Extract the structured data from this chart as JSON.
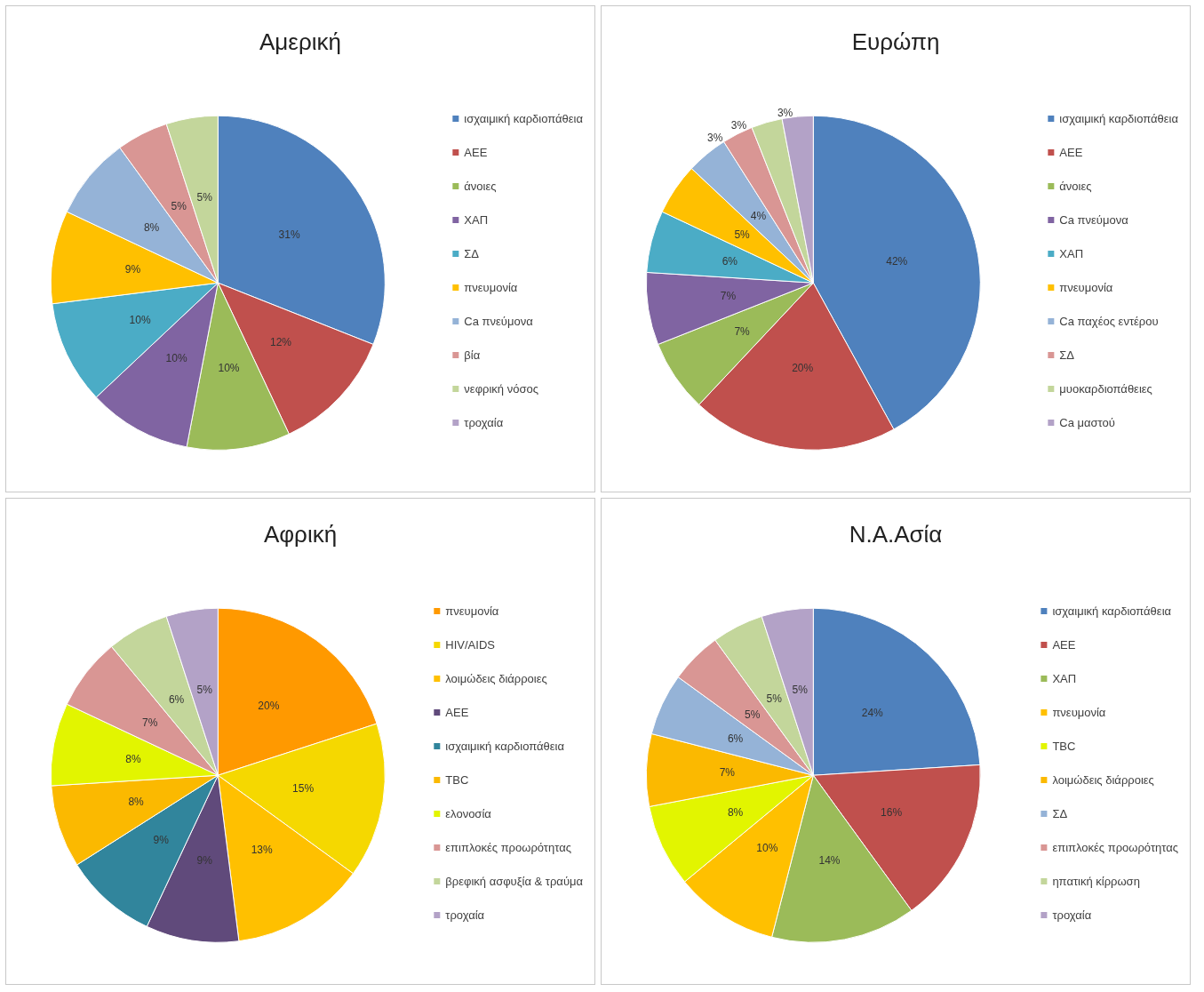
{
  "chart_data": [
    {
      "type": "pie",
      "title": "Αμερική",
      "legend": "right",
      "categories": [
        "ισχαιμική καρδιοπάθεια",
        "ΑΕΕ",
        "άνοιες",
        "ΧΑΠ",
        "ΣΔ",
        "πνευμονία",
        "Ca πνεύμονα",
        "βία",
        "νεφρική νόσος",
        "τροχαία"
      ],
      "values": [
        31,
        12,
        10,
        10,
        10,
        9,
        8,
        5,
        5,
        null
      ],
      "value_labels": [
        "31%",
        "12%",
        "10%",
        "10%",
        "10%",
        "9%",
        "8%",
        "5%",
        "5%",
        null
      ],
      "colors": [
        "#4f81bd",
        "#c0504d",
        "#9bbb59",
        "#8064a2",
        "#4bacc6",
        "#ffc000",
        "#95b3d7",
        "#d99694",
        "#c3d69b",
        "#b3a2c7"
      ]
    },
    {
      "type": "pie",
      "title": "Ευρώπη",
      "legend": "right",
      "categories": [
        "ισχαιμική καρδιοπάθεια",
        "ΑΕΕ",
        "άνοιες",
        "Ca πνεύμονα",
        "ΧΑΠ",
        "πνευμονία",
        "Ca παχέος εντέρου",
        "ΣΔ",
        "μυοκαρδιοπάθειες",
        "Ca μαστού"
      ],
      "values": [
        42,
        20,
        7,
        7,
        6,
        5,
        4,
        3,
        3,
        3
      ],
      "value_labels": [
        "42%",
        "20%",
        "7%",
        "7%",
        "6%",
        "5%",
        "4%",
        "3%",
        "3%",
        "3%"
      ],
      "colors": [
        "#4f81bd",
        "#c0504d",
        "#9bbb59",
        "#8064a2",
        "#4bacc6",
        "#ffc000",
        "#95b3d7",
        "#d99694",
        "#c3d69b",
        "#b3a2c7"
      ]
    },
    {
      "type": "pie",
      "title": "Αφρική",
      "legend": "right",
      "categories": [
        "πνευμονία",
        "HIV/AIDS",
        "λοιμώδεις διάρροιες",
        "ΑΕΕ",
        "ισχαιμική καρδιοπάθεια",
        "TBC",
        "ελονοσία",
        "επιπλοκές προωρότητας",
        "βρεφική ασφυξία & τραύμα",
        "τροχαία"
      ],
      "values": [
        20,
        15,
        13,
        9,
        9,
        8,
        8,
        7,
        6,
        5
      ],
      "value_labels": [
        "20%",
        "15%",
        "13%",
        "9%",
        "9%",
        "8%",
        "8%",
        "7%",
        "6%",
        "5%"
      ],
      "colors": [
        "#ff9900",
        "#f5d800",
        "#ffc000",
        "#604a7b",
        "#31859c",
        "#fbb900",
        "#e2f500",
        "#d99694",
        "#c3d69b",
        "#b3a2c7"
      ]
    },
    {
      "type": "pie",
      "title": "Ν.Α.Ασία",
      "legend": "right",
      "categories": [
        "ισχαιμική καρδιοπάθεια",
        "ΑΕΕ",
        "ΧΑΠ",
        "πνευμονία",
        "TBC",
        "λοιμώδεις διάρροιες",
        "ΣΔ",
        "επιπλοκές προωρότητας",
        "ηπατική κίρρωση",
        "τροχαία"
      ],
      "values": [
        24,
        16,
        14,
        10,
        8,
        7,
        6,
        5,
        5,
        5
      ],
      "value_labels": [
        "24%",
        "16%",
        "14%",
        "10%",
        "8%",
        "7%",
        "6%",
        "5%",
        "5%",
        "5%"
      ],
      "colors": [
        "#4f81bd",
        "#c0504d",
        "#9bbb59",
        "#ffc000",
        "#e2f500",
        "#fbb900",
        "#95b3d7",
        "#d99694",
        "#c3d69b",
        "#b3a2c7"
      ]
    }
  ]
}
